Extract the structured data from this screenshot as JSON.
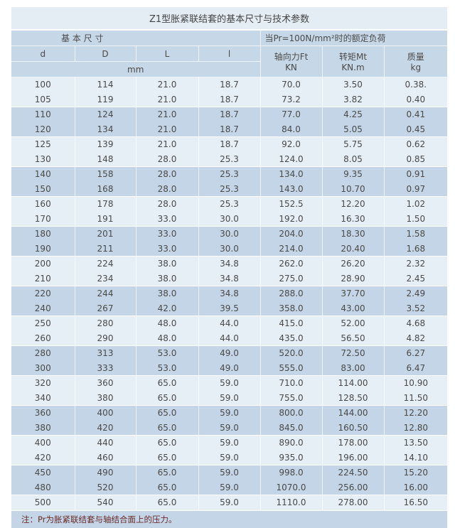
{
  "title": "Z1型胀紧联结套的基本尺寸与技术参数",
  "header": {
    "group1": "基 本 尺 寸",
    "group2": "当Pr=100N/mm²时的额定负荷",
    "d": "d",
    "D": "D",
    "L": "L",
    "l": "l",
    "ft": "轴向力Ft",
    "ft_unit": "KN",
    "mt": "转矩Mt",
    "mt_unit": "KN.m",
    "mass": "质量",
    "mass_unit": "kg",
    "mm": "mm"
  },
  "rows": [
    [
      "100",
      "114",
      "21.0",
      "18.7",
      "70.0",
      "3.50",
      "0.38."
    ],
    [
      "105",
      "119",
      "21.0",
      "18.7",
      "73.2",
      "3.82",
      "0.40"
    ],
    [
      "110",
      "124",
      "21.0",
      "18.7",
      "77.0",
      "4.25",
      "0.41"
    ],
    [
      "120",
      "134",
      "21.0",
      "18.7",
      "84.0",
      "5.05",
      "0.45"
    ],
    [
      "125",
      "139",
      "21.0",
      "18.7",
      "92.0",
      "5.75",
      "0.62"
    ],
    [
      "130",
      "148",
      "28.0",
      "25.3",
      "124.0",
      "8.05",
      "0.85"
    ],
    [
      "140",
      "158",
      "28.0",
      "25.3",
      "134.0",
      "9.35",
      "0.91"
    ],
    [
      "150",
      "168",
      "28.0",
      "25.3",
      "143.0",
      "10.70",
      "0.97"
    ],
    [
      "160",
      "178",
      "28.0",
      "25.3",
      "152.5",
      "12.20",
      "1.02"
    ],
    [
      "170",
      "191",
      "33.0",
      "30.0",
      "192.0",
      "16.30",
      "1.50"
    ],
    [
      "180",
      "201",
      "33.0",
      "30.0",
      "204.0",
      "18.30",
      "1.58"
    ],
    [
      "190",
      "211",
      "33.0",
      "30.0",
      "214.0",
      "20.40",
      "1.68"
    ],
    [
      "200",
      "224",
      "38.0",
      "34.8",
      "262.0",
      "26.20",
      "2.32"
    ],
    [
      "210",
      "234",
      "38.0",
      "34.8",
      "275.0",
      "28.90",
      "2.45"
    ],
    [
      "220",
      "244",
      "38.0",
      "34.8",
      "288.0",
      "37.70",
      "2.49"
    ],
    [
      "240",
      "267",
      "42.0",
      "39.5",
      "358.0",
      "43.00",
      "3.52"
    ],
    [
      "250",
      "280",
      "48.0",
      "44.0",
      "415.0",
      "52.00",
      "4.68"
    ],
    [
      "260",
      "290",
      "48.0",
      "44.0",
      "435.0",
      "56.50",
      "4.82"
    ],
    [
      "280",
      "313",
      "53.0",
      "49.0",
      "520.0",
      "72.50",
      "6.27"
    ],
    [
      "300",
      "333",
      "53.0",
      "49.0",
      "555.0",
      "83.00",
      "6.47"
    ],
    [
      "320",
      "360",
      "65.0",
      "59.0",
      "710.0",
      "114.00",
      "10.90"
    ],
    [
      "340",
      "380",
      "65.0",
      "59.0",
      "755.0",
      "128.50",
      "11.50"
    ],
    [
      "360",
      "400",
      "65.0",
      "59.0",
      "800.0",
      "144.00",
      "12.20"
    ],
    [
      "380",
      "420",
      "65.0",
      "59.0",
      "845.0",
      "160.50",
      "12.80"
    ],
    [
      "400",
      "440",
      "65.0",
      "59.0",
      "890.0",
      "178.00",
      "13.50"
    ],
    [
      "420",
      "460",
      "65.0",
      "59.0",
      "935.0",
      "196.00",
      "14.10"
    ],
    [
      "450",
      "490",
      "65.0",
      "59.0",
      "998.0",
      "224.50",
      "15.20"
    ],
    [
      "480",
      "520",
      "65.0",
      "59.0",
      "1070.0",
      "256.00",
      "16.00"
    ],
    [
      "500",
      "540",
      "65.0",
      "59.0",
      "1110.0",
      "278.00",
      "16.50"
    ]
  ],
  "note": "注：Pr为胀紧联结套与轴结合面上的压力。"
}
